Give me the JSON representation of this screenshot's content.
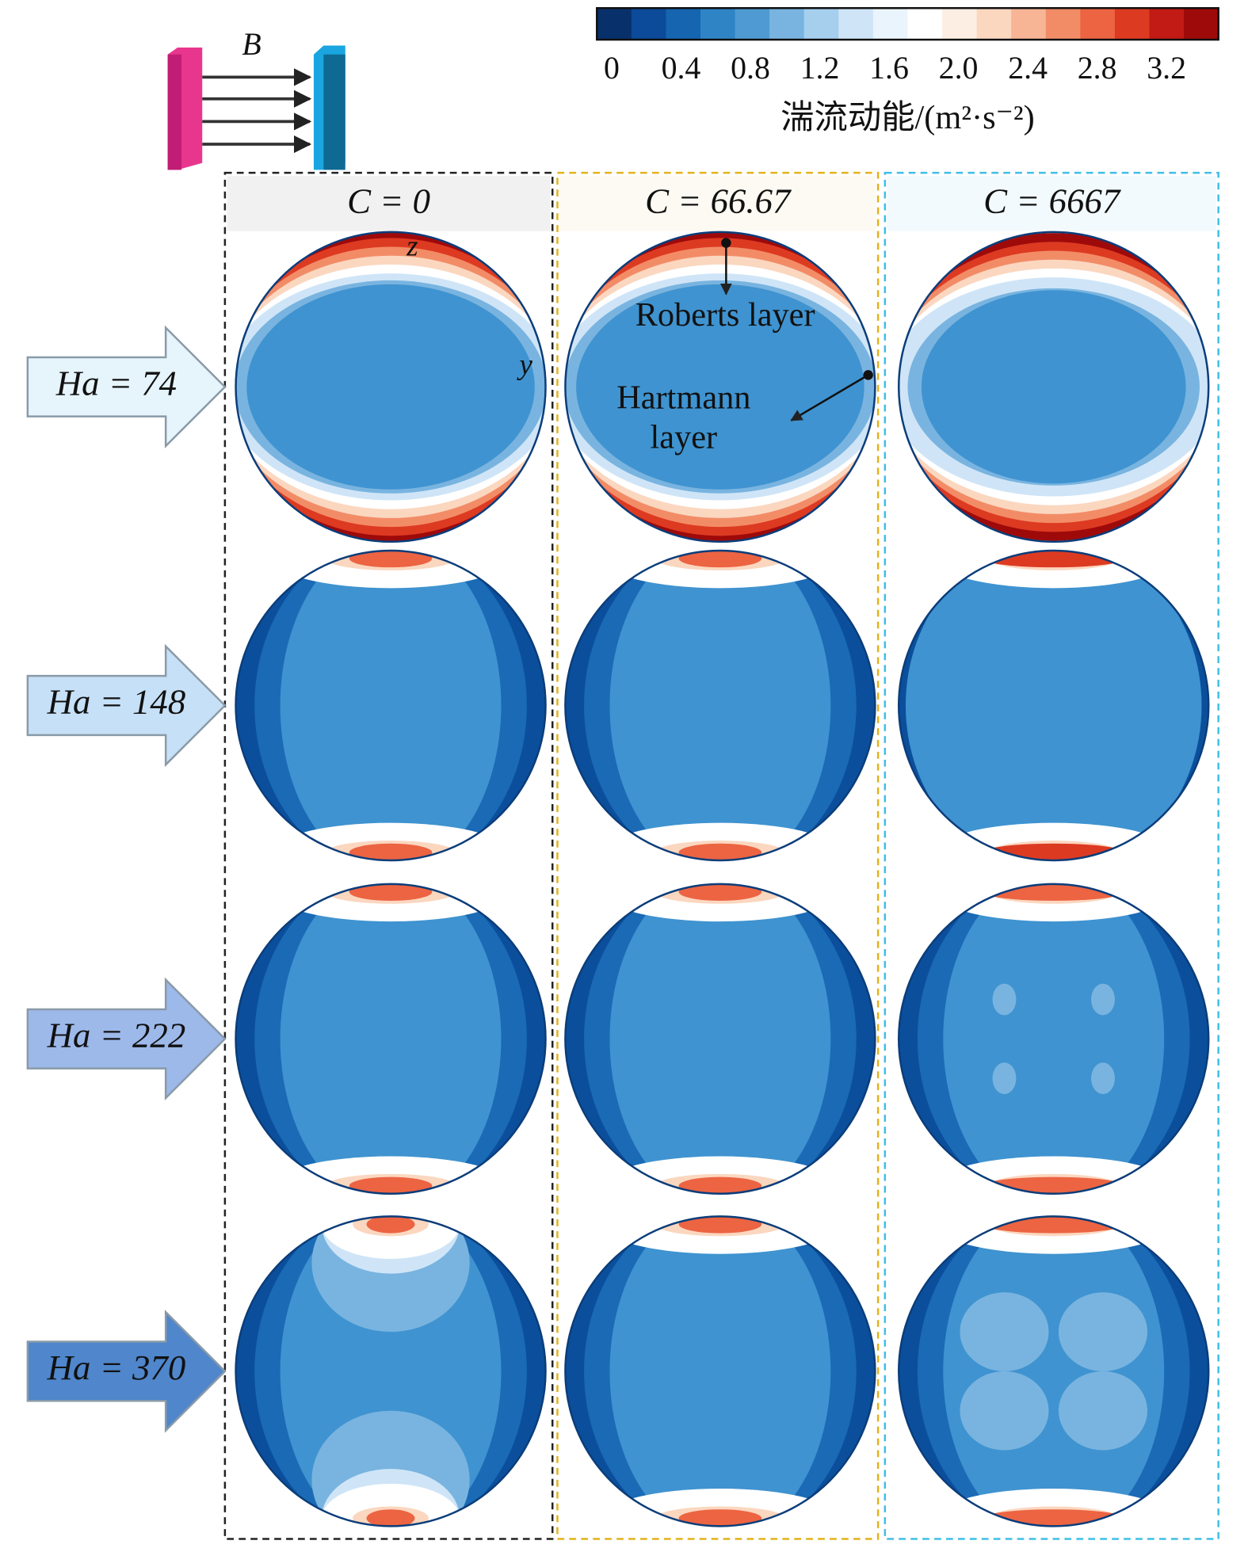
{
  "colorbar": {
    "ticks": [
      "0",
      "0.4",
      "0.8",
      "1.2",
      "1.6",
      "2.0",
      "2.4",
      "2.8",
      "3.2"
    ],
    "label": "湍流动能/(m²·s⁻²)"
  },
  "field_label": "B",
  "columns": [
    "C = 0",
    "C = 66.67",
    "C = 6667"
  ],
  "rows": [
    "Ha = 74",
    "Ha = 148",
    "Ha = 222",
    "Ha = 370"
  ],
  "annotations": {
    "z": "z",
    "y": "y",
    "roberts": "Roberts layer",
    "hartmann": [
      "Hartmann",
      "layer"
    ]
  }
}
